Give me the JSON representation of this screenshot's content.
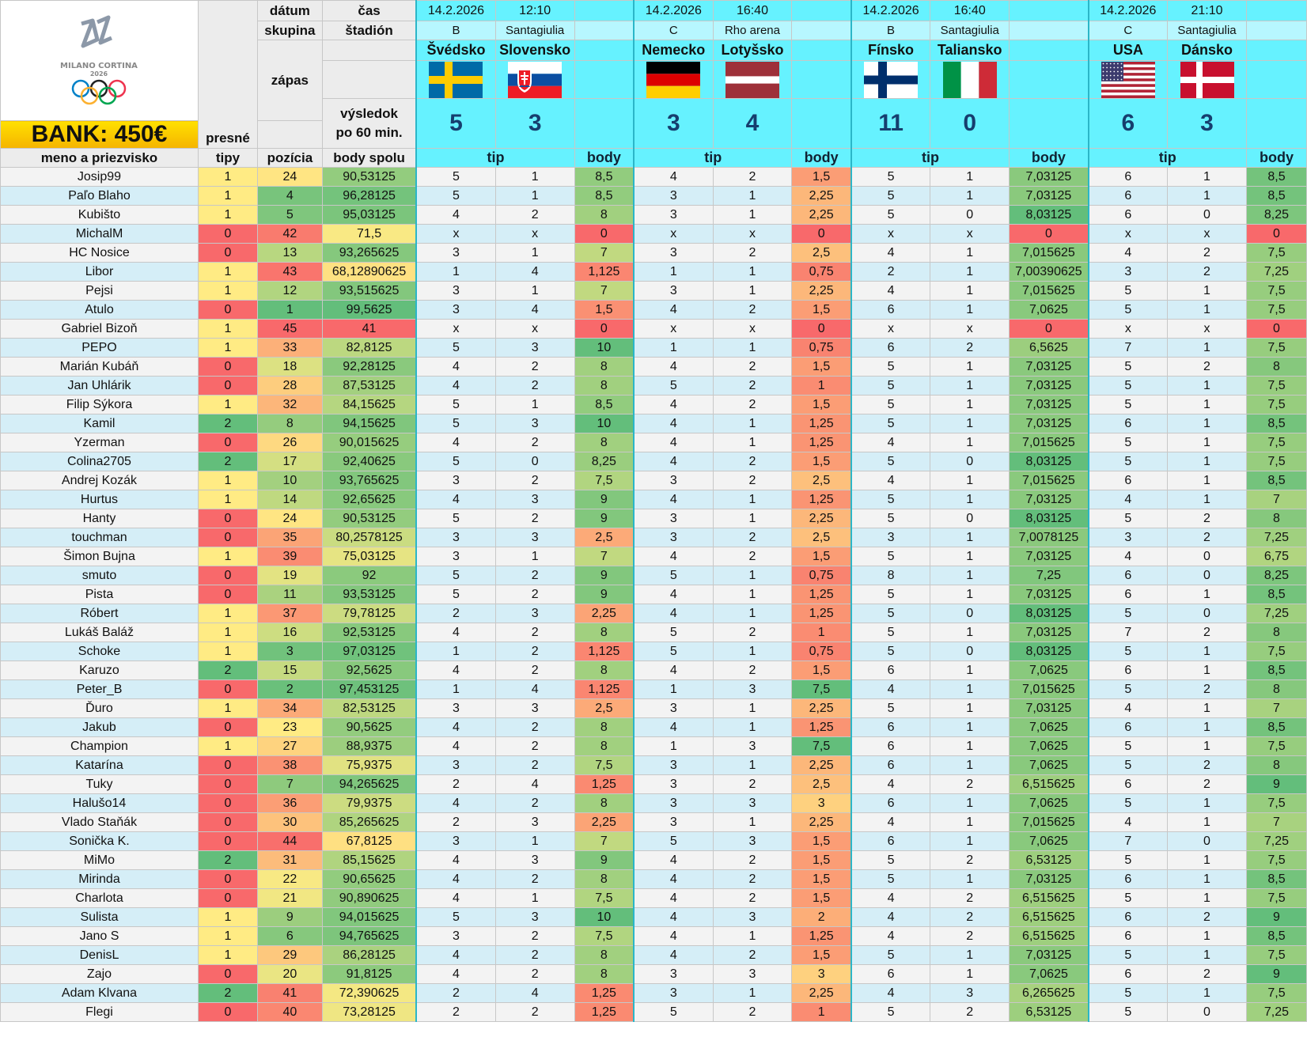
{
  "bank": "BANK: 450€",
  "headers": {
    "datum": "dátum",
    "cas": "čas",
    "skupina": "skupina",
    "stadion": "štadión",
    "zapas": "zápas",
    "vysledok": "výsledok",
    "po60": "po 60 min.",
    "presne": "presné",
    "tipy": "tipy",
    "meno": "meno a priezvisko",
    "pozicia": "pozícia",
    "body_spolu": "body spolu",
    "tip": "tip",
    "body": "body"
  },
  "logo": {
    "text": "MILANO CORTINA",
    "year": "2026"
  },
  "colors": {
    "low": "#f8696b",
    "mid": "#ffeb84",
    "high": "#63be7b"
  },
  "matches": [
    {
      "date": "14.2.2026",
      "time": "12:10",
      "group": "B",
      "stadium": "Santagiulia",
      "home": "Švédsko",
      "away": "Slovensko",
      "home_flag": "sweden-flag",
      "away_flag": "slovakia-flag",
      "home_score": "5",
      "away_score": "3"
    },
    {
      "date": "14.2.2026",
      "time": "16:40",
      "group": "C",
      "stadium": "Rho arena",
      "home": "Nemecko",
      "away": "Lotyšsko",
      "home_flag": "germany-flag",
      "away_flag": "latvia-flag",
      "home_score": "3",
      "away_score": "4"
    },
    {
      "date": "14.2.2026",
      "time": "16:40",
      "group": "B",
      "stadium": "Santagiulia",
      "home": "Fínsko",
      "away": "Taliansko",
      "home_flag": "finland-flag",
      "away_flag": "italy-flag",
      "home_score": "11",
      "away_score": "0"
    },
    {
      "date": "14.2.2026",
      "time": "21:10",
      "group": "C",
      "stadium": "Santagiulia",
      "home": "USA",
      "away": "Dánsko",
      "home_flag": "usa-flag",
      "away_flag": "denmark-flag",
      "home_score": "6",
      "away_score": "3"
    }
  ],
  "players": [
    [
      "Josip99",
      "1",
      "24",
      "90,53125",
      "5",
      "1",
      "8,5",
      "4",
      "2",
      "1,5",
      "5",
      "1",
      "7,03125",
      "6",
      "1",
      "8,5"
    ],
    [
      "Paľo Blaho",
      "1",
      "4",
      "96,28125",
      "5",
      "1",
      "8,5",
      "3",
      "1",
      "2,25",
      "5",
      "1",
      "7,03125",
      "6",
      "1",
      "8,5"
    ],
    [
      "Kubišto",
      "1",
      "5",
      "95,03125",
      "4",
      "2",
      "8",
      "3",
      "1",
      "2,25",
      "5",
      "0",
      "8,03125",
      "6",
      "0",
      "8,25"
    ],
    [
      "MichalM",
      "0",
      "42",
      "71,5",
      "x",
      "x",
      "0",
      "x",
      "x",
      "0",
      "x",
      "x",
      "0",
      "x",
      "x",
      "0"
    ],
    [
      "HC Nosice",
      "0",
      "13",
      "93,265625",
      "3",
      "1",
      "7",
      "3",
      "2",
      "2,5",
      "4",
      "1",
      "7,015625",
      "4",
      "2",
      "7,5"
    ],
    [
      "Libor",
      "1",
      "43",
      "68,12890625",
      "1",
      "4",
      "1,125",
      "1",
      "1",
      "0,75",
      "2",
      "1",
      "7,00390625",
      "3",
      "2",
      "7,25"
    ],
    [
      "Pejsi",
      "1",
      "12",
      "93,515625",
      "3",
      "1",
      "7",
      "3",
      "1",
      "2,25",
      "4",
      "1",
      "7,015625",
      "5",
      "1",
      "7,5"
    ],
    [
      "Atulo",
      "0",
      "1",
      "99,5625",
      "3",
      "4",
      "1,5",
      "4",
      "2",
      "1,5",
      "6",
      "1",
      "7,0625",
      "5",
      "1",
      "7,5"
    ],
    [
      "Gabriel Bizoň",
      "1",
      "45",
      "41",
      "x",
      "x",
      "0",
      "x",
      "x",
      "0",
      "x",
      "x",
      "0",
      "x",
      "x",
      "0"
    ],
    [
      "PEPO",
      "1",
      "33",
      "82,8125",
      "5",
      "3",
      "10",
      "1",
      "1",
      "0,75",
      "6",
      "2",
      "6,5625",
      "7",
      "1",
      "7,5"
    ],
    [
      "Marián Kubáň",
      "0",
      "18",
      "92,28125",
      "4",
      "2",
      "8",
      "4",
      "2",
      "1,5",
      "5",
      "1",
      "7,03125",
      "5",
      "2",
      "8"
    ],
    [
      "Jan Uhlárik",
      "0",
      "28",
      "87,53125",
      "4",
      "2",
      "8",
      "5",
      "2",
      "1",
      "5",
      "1",
      "7,03125",
      "5",
      "1",
      "7,5"
    ],
    [
      "Filip Sýkora",
      "1",
      "32",
      "84,15625",
      "5",
      "1",
      "8,5",
      "4",
      "2",
      "1,5",
      "5",
      "1",
      "7,03125",
      "5",
      "1",
      "7,5"
    ],
    [
      "Kamil",
      "2",
      "8",
      "94,15625",
      "5",
      "3",
      "10",
      "4",
      "1",
      "1,25",
      "5",
      "1",
      "7,03125",
      "6",
      "1",
      "8,5"
    ],
    [
      "Yzerman",
      "0",
      "26",
      "90,015625",
      "4",
      "2",
      "8",
      "4",
      "1",
      "1,25",
      "4",
      "1",
      "7,015625",
      "5",
      "1",
      "7,5"
    ],
    [
      "Colina2705",
      "2",
      "17",
      "92,40625",
      "5",
      "0",
      "8,25",
      "4",
      "2",
      "1,5",
      "5",
      "0",
      "8,03125",
      "5",
      "1",
      "7,5"
    ],
    [
      "Andrej Kozák",
      "1",
      "10",
      "93,765625",
      "3",
      "2",
      "7,5",
      "3",
      "2",
      "2,5",
      "4",
      "1",
      "7,015625",
      "6",
      "1",
      "8,5"
    ],
    [
      "Hurtus",
      "1",
      "14",
      "92,65625",
      "4",
      "3",
      "9",
      "4",
      "1",
      "1,25",
      "5",
      "1",
      "7,03125",
      "4",
      "1",
      "7"
    ],
    [
      "Hanty",
      "0",
      "24",
      "90,53125",
      "5",
      "2",
      "9",
      "3",
      "1",
      "2,25",
      "5",
      "0",
      "8,03125",
      "5",
      "2",
      "8"
    ],
    [
      "touchman",
      "0",
      "35",
      "80,2578125",
      "3",
      "3",
      "2,5",
      "3",
      "2",
      "2,5",
      "3",
      "1",
      "7,0078125",
      "3",
      "2",
      "7,25"
    ],
    [
      "Šimon Bujna",
      "1",
      "39",
      "75,03125",
      "3",
      "1",
      "7",
      "4",
      "2",
      "1,5",
      "5",
      "1",
      "7,03125",
      "4",
      "0",
      "6,75"
    ],
    [
      "smuto",
      "0",
      "19",
      "92",
      "5",
      "2",
      "9",
      "5",
      "1",
      "0,75",
      "8",
      "1",
      "7,25",
      "6",
      "0",
      "8,25"
    ],
    [
      "Pista",
      "0",
      "11",
      "93,53125",
      "5",
      "2",
      "9",
      "4",
      "1",
      "1,25",
      "5",
      "1",
      "7,03125",
      "6",
      "1",
      "8,5"
    ],
    [
      "Róbert",
      "1",
      "37",
      "79,78125",
      "2",
      "3",
      "2,25",
      "4",
      "1",
      "1,25",
      "5",
      "0",
      "8,03125",
      "5",
      "0",
      "7,25"
    ],
    [
      "Lukáš Baláž",
      "1",
      "16",
      "92,53125",
      "4",
      "2",
      "8",
      "5",
      "2",
      "1",
      "5",
      "1",
      "7,03125",
      "7",
      "2",
      "8"
    ],
    [
      "Schoke",
      "1",
      "3",
      "97,03125",
      "1",
      "2",
      "1,125",
      "5",
      "1",
      "0,75",
      "5",
      "0",
      "8,03125",
      "5",
      "1",
      "7,5"
    ],
    [
      "Karuzo",
      "2",
      "15",
      "92,5625",
      "4",
      "2",
      "8",
      "4",
      "2",
      "1,5",
      "6",
      "1",
      "7,0625",
      "6",
      "1",
      "8,5"
    ],
    [
      "Peter_B",
      "0",
      "2",
      "97,453125",
      "1",
      "4",
      "1,125",
      "1",
      "3",
      "7,5",
      "4",
      "1",
      "7,015625",
      "5",
      "2",
      "8"
    ],
    [
      "Ďuro",
      "1",
      "34",
      "82,53125",
      "3",
      "3",
      "2,5",
      "3",
      "1",
      "2,25",
      "5",
      "1",
      "7,03125",
      "4",
      "1",
      "7"
    ],
    [
      "Jakub",
      "0",
      "23",
      "90,5625",
      "4",
      "2",
      "8",
      "4",
      "1",
      "1,25",
      "6",
      "1",
      "7,0625",
      "6",
      "1",
      "8,5"
    ],
    [
      "Champion",
      "1",
      "27",
      "88,9375",
      "4",
      "2",
      "8",
      "1",
      "3",
      "7,5",
      "6",
      "1",
      "7,0625",
      "5",
      "1",
      "7,5"
    ],
    [
      "Katarína",
      "0",
      "38",
      "75,9375",
      "3",
      "2",
      "7,5",
      "3",
      "1",
      "2,25",
      "6",
      "1",
      "7,0625",
      "5",
      "2",
      "8"
    ],
    [
      "Tuky",
      "0",
      "7",
      "94,265625",
      "2",
      "4",
      "1,25",
      "3",
      "2",
      "2,5",
      "4",
      "2",
      "6,515625",
      "6",
      "2",
      "9"
    ],
    [
      "Halušo14",
      "0",
      "36",
      "79,9375",
      "4",
      "2",
      "8",
      "3",
      "3",
      "3",
      "6",
      "1",
      "7,0625",
      "5",
      "1",
      "7,5"
    ],
    [
      "Vlado Staňák",
      "0",
      "30",
      "85,265625",
      "2",
      "3",
      "2,25",
      "3",
      "1",
      "2,25",
      "4",
      "1",
      "7,015625",
      "4",
      "1",
      "7"
    ],
    [
      "Sonička K.",
      "0",
      "44",
      "67,8125",
      "3",
      "1",
      "7",
      "5",
      "3",
      "1,5",
      "6",
      "1",
      "7,0625",
      "7",
      "0",
      "7,25"
    ],
    [
      "MiMo",
      "2",
      "31",
      "85,15625",
      "4",
      "3",
      "9",
      "4",
      "2",
      "1,5",
      "5",
      "2",
      "6,53125",
      "5",
      "1",
      "7,5"
    ],
    [
      "Mirinda",
      "0",
      "22",
      "90,65625",
      "4",
      "2",
      "8",
      "4",
      "2",
      "1,5",
      "5",
      "1",
      "7,03125",
      "6",
      "1",
      "8,5"
    ],
    [
      "Charlota",
      "0",
      "21",
      "90,890625",
      "4",
      "1",
      "7,5",
      "4",
      "2",
      "1,5",
      "4",
      "2",
      "6,515625",
      "5",
      "1",
      "7,5"
    ],
    [
      "Sulista",
      "1",
      "9",
      "94,015625",
      "5",
      "3",
      "10",
      "4",
      "3",
      "2",
      "4",
      "2",
      "6,515625",
      "6",
      "2",
      "9"
    ],
    [
      "Jano S",
      "1",
      "6",
      "94,765625",
      "3",
      "2",
      "7,5",
      "4",
      "1",
      "1,25",
      "4",
      "2",
      "6,515625",
      "6",
      "1",
      "8,5"
    ],
    [
      "DenisL",
      "1",
      "29",
      "86,28125",
      "4",
      "2",
      "8",
      "4",
      "2",
      "1,5",
      "5",
      "1",
      "7,03125",
      "5",
      "1",
      "7,5"
    ],
    [
      "Zajo",
      "0",
      "20",
      "91,8125",
      "4",
      "2",
      "8",
      "3",
      "3",
      "3",
      "6",
      "1",
      "7,0625",
      "6",
      "2",
      "9"
    ],
    [
      "Adam Klvana",
      "2",
      "41",
      "72,390625",
      "2",
      "4",
      "1,25",
      "3",
      "1",
      "2,25",
      "4",
      "3",
      "6,265625",
      "5",
      "1",
      "7,5"
    ],
    [
      "Flegi",
      "0",
      "40",
      "73,28125",
      "2",
      "2",
      "1,25",
      "5",
      "2",
      "1",
      "5",
      "2",
      "6,53125",
      "5",
      "0",
      "7,25"
    ]
  ]
}
